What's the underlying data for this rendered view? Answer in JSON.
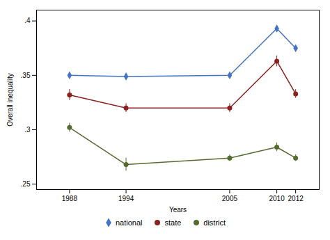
{
  "chart_data": {
    "type": "line",
    "xlabel": "Years",
    "ylabel": "Overall inequality",
    "x": [
      1988,
      1994,
      2005,
      2010,
      2012
    ],
    "series": [
      {
        "name": "national",
        "color": "#4472C4",
        "marker": "diamond",
        "values": [
          0.35,
          0.349,
          0.35,
          0.393,
          0.375
        ]
      },
      {
        "name": "state",
        "color": "#8B2020",
        "marker": "circle",
        "values": [
          0.332,
          0.32,
          0.32,
          0.363,
          0.333
        ],
        "errors": [
          0.005,
          0.004,
          0.004,
          0.005,
          0.004
        ]
      },
      {
        "name": "district",
        "color": "#556B2F",
        "marker": "circle",
        "values": [
          0.302,
          0.268,
          0.274,
          0.284,
          0.274
        ],
        "errors": [
          0.004,
          0.006,
          0.003,
          0.004,
          0.003
        ]
      }
    ],
    "xlim": [
      1984.5,
      2014.5
    ],
    "xticks": [
      1988,
      1994,
      2005,
      2010,
      2012
    ],
    "ylim": [
      0.245,
      0.41
    ],
    "yticks": [
      {
        "value": 0.25,
        "label": ".25"
      },
      {
        "value": 0.3,
        "label": ".3"
      },
      {
        "value": 0.35,
        "label": ".35"
      },
      {
        "value": 0.4,
        "label": ".4"
      }
    ],
    "grid": false,
    "legend": "bottom"
  }
}
